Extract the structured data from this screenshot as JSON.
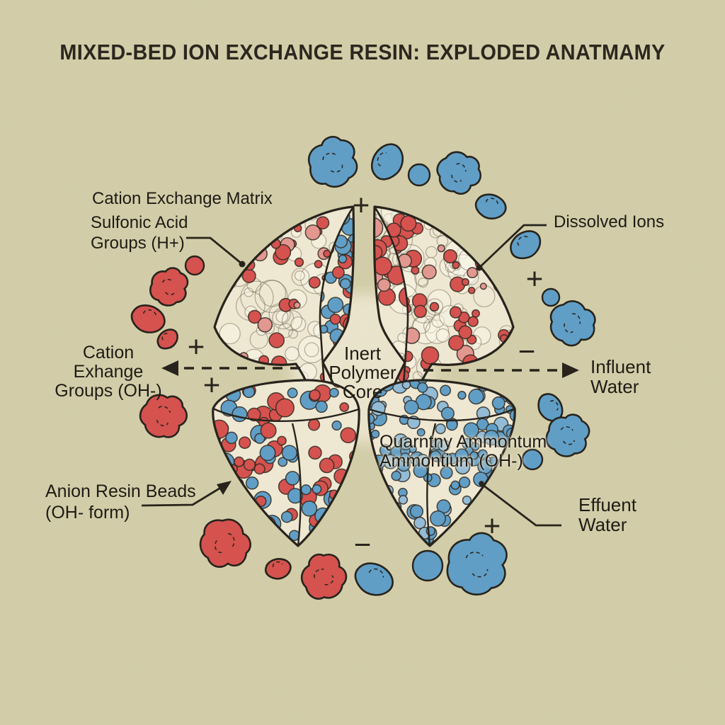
{
  "title": "MIXED-BED ION EXCHANGE RESIN: EXPLODED ANATMAMY",
  "colors": {
    "background": "#d3cea9",
    "ink": "#242019",
    "text": "#1e1b15",
    "red": "#d6504d",
    "red_light": "#e39790",
    "blue": "#5e9ec7",
    "blue_light": "#93bcd8",
    "cream": "#f0e9d3",
    "core_glow": "#ece5cd",
    "foam_line": "#7d7459"
  },
  "labels": {
    "cation_matrix": "Cation Exchange Matrix",
    "sulfonic_line1": "Sulfonic Acid",
    "sulfonic_line2": "Groups (H+)",
    "dissolved_ions": "Dissolved Ions",
    "cation_groups_line1": "Cation",
    "cation_groups_line2": "Exhange",
    "cation_groups_line3": "Groups (OH-)",
    "core_line1": "Inert",
    "core_line2": "Polymer",
    "core_line3": "Core",
    "influent_line1": "Influent",
    "influent_line2": "Water",
    "quaternary_line1": "Quarntny Ammontum",
    "quaternary_line2": "Ammontium (OH-)",
    "anion_line1": "Anion Resin Beads",
    "anion_line2": "(OH- form)",
    "effluent_line1": "Effuent",
    "effluent_line2": "Water"
  },
  "symbols": {
    "plus": "+",
    "minus": "−"
  }
}
